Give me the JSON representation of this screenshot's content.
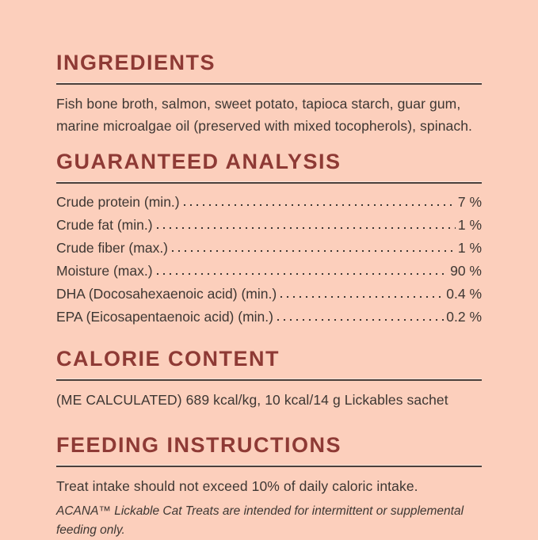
{
  "meta": {
    "background_color": "#fccfbc",
    "heading_color": "#8e3a35",
    "text_color": "#3e3733",
    "rule_color": "#4a403b"
  },
  "sections": {
    "ingredients": {
      "title": "INGREDIENTS",
      "body": "Fish bone broth, salmon, sweet potato, tapioca starch, guar gum, marine microalgae oil (preserved with mixed tocopherols), spinach."
    },
    "guaranteed_analysis": {
      "title": "GUARANTEED ANALYSIS",
      "rows": [
        {
          "label": "Crude protein (min.)",
          "value": "7 %"
        },
        {
          "label": "Crude fat (min.)",
          "value": "1 %"
        },
        {
          "label": "Crude fiber (max.)",
          "value": "1 %"
        },
        {
          "label": "Moisture (max.)",
          "value": "90 %"
        },
        {
          "label": "DHA (Docosahexaenoic acid) (min.)",
          "value": "0.4 %"
        },
        {
          "label": "EPA (Eicosapentaenoic acid) (min.)",
          "value": "0.2 %"
        }
      ]
    },
    "calorie_content": {
      "title": "CALORIE CONTENT",
      "body": "(ME CALCULATED) 689 kcal/kg, 10 kcal/14 g Lickables sachet"
    },
    "feeding_instructions": {
      "title": "FEEDING INSTRUCTIONS",
      "body": "Treat intake should not exceed 10% of daily caloric intake.",
      "note": "ACANA™ Lickable Cat Treats are intended for intermittent or supplemental feeding only."
    }
  }
}
